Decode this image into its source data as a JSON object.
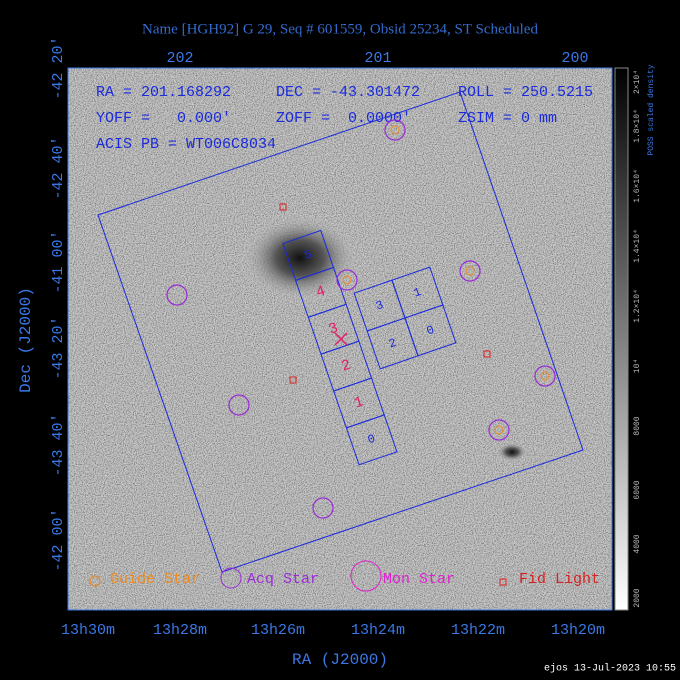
{
  "header": {
    "title": "Name [HGH92] G 29, Seq # 601559, Obsid 25234, ST Scheduled"
  },
  "top_axis": {
    "labels": [
      "202",
      "201",
      "200"
    ]
  },
  "left_axis": {
    "title": "Dec (J2000)",
    "labels": [
      "-42 20'",
      "-42 40'",
      "-41 00'",
      "-43 20'",
      "-43 40'",
      "-42 00'"
    ]
  },
  "bottom_axis": {
    "title": "RA (J2000)",
    "labels": [
      "13h30m",
      "13h28m",
      "13h26m",
      "13h24m",
      "13h22m",
      "13h20m"
    ]
  },
  "info": [
    "RA = 201.168292",
    "DEC = -43.301472",
    "ROLL = 250.5215",
    "YOFF =   0.000'",
    "ZOFF =  0.0000'",
    "ZSIM = 0 mm",
    "ACIS PB = WT006C8034"
  ],
  "acis_s_chips": [
    "5",
    "4",
    "3",
    "2",
    "1",
    "0"
  ],
  "acis_i_chips": [
    "3",
    "1",
    "2",
    "0"
  ],
  "legend": [
    "Guide Star",
    "Acq Star",
    "Mon Star",
    "Fid Light"
  ],
  "colorbar": {
    "title": "POSS scaled density",
    "labels": [
      "2000",
      "4000",
      "6000",
      "8000",
      "10⁴",
      "1.2×10⁴",
      "1.4×10⁴",
      "1.6×10⁴",
      "1.8×10⁴",
      "2×10⁴"
    ]
  },
  "footer": "ejos 13-Jul-2023 10:55"
}
